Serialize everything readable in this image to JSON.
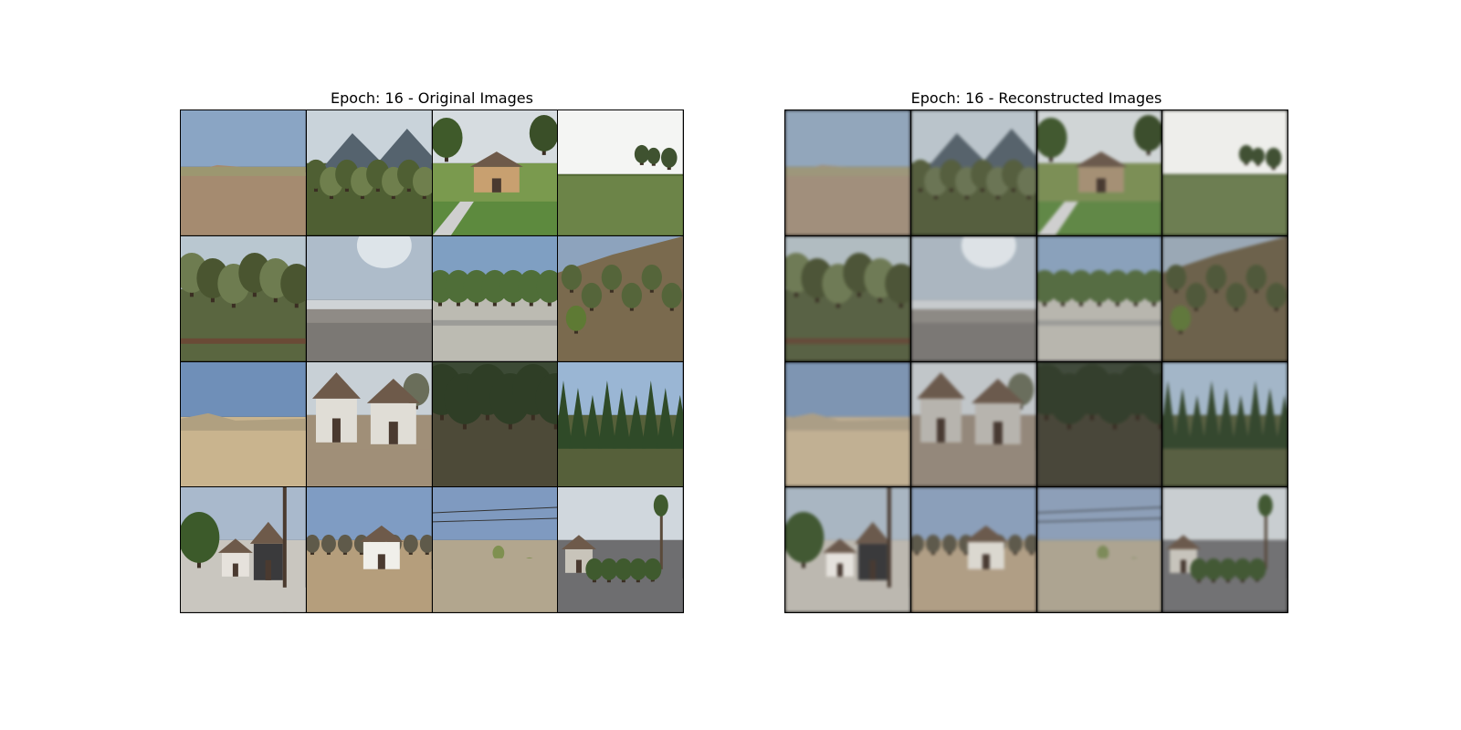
{
  "panels": [
    {
      "title": "Epoch: 16 - Original Images",
      "kind": "original",
      "tiles": [
        {
          "scene": "dry-hill",
          "sky": "#8aa5c4",
          "ground": "#a58b70",
          "mid": "#9a9a70"
        },
        {
          "scene": "trees-mountain",
          "sky": "#c9d3da",
          "ground": "#4f5f33",
          "mid": "#6f7f4d"
        },
        {
          "scene": "house",
          "sky": "#d6dce0",
          "ground": "#7a9a4e",
          "mid": "#c8a070"
        },
        {
          "scene": "field",
          "sky": "#f4f5f3",
          "ground": "#556b35",
          "mid": "#6c8448"
        },
        {
          "scene": "tall-trees",
          "sky": "#b9c7d0",
          "ground": "#5a6640",
          "mid": "#4a5530"
        },
        {
          "scene": "road-bright",
          "sky": "#aebcca",
          "ground": "#8f8b86",
          "mid": "#cfd3d6"
        },
        {
          "scene": "trees-road",
          "sky": "#7f9fc2",
          "ground": "#bcbbb2",
          "mid": "#4f6e38"
        },
        {
          "scene": "brush-hill",
          "sky": "#8da3bd",
          "ground": "#7a6a4e",
          "mid": "#55653a"
        },
        {
          "scene": "desert",
          "sky": "#6f8fb8",
          "ground": "#c9b48e",
          "mid": "#b0a080"
        },
        {
          "scene": "two-houses",
          "sky": "#c8d0d6",
          "ground": "#a08f78",
          "mid": "#e0ddd6"
        },
        {
          "scene": "dark-trees",
          "sky": "#3c4a35",
          "ground": "#4d4a38",
          "mid": "#2f3e26"
        },
        {
          "scene": "pines",
          "sky": "#9ab6d4",
          "ground": "#56603a",
          "mid": "#2f4a28"
        },
        {
          "scene": "garage",
          "sky": "#a9b9cc",
          "ground": "#c9c6bf",
          "mid": "#3c5a2a"
        },
        {
          "scene": "white-house",
          "sky": "#7f9cc3",
          "ground": "#b59e7c",
          "mid": "#f0efea"
        },
        {
          "scene": "lot",
          "sky": "#7f9ac0",
          "ground": "#b2a68e",
          "mid": "#7f9050"
        },
        {
          "scene": "street-palm",
          "sky": "#d0d7dd",
          "ground": "#6e6e70",
          "mid": "#3f5a2e"
        }
      ]
    },
    {
      "title": "Epoch: 16 - Reconstructed Images",
      "kind": "reconstructed",
      "tiles": [
        {
          "scene": "dry-hill",
          "sky": "#8fa6bf",
          "ground": "#a48f78",
          "mid": "#9c9876"
        },
        {
          "scene": "trees-mountain",
          "sky": "#b8c4cc",
          "ground": "#55603a",
          "mid": "#6a7650"
        },
        {
          "scene": "house",
          "sky": "#cfd5d6",
          "ground": "#7a904e",
          "mid": "#a89070"
        },
        {
          "scene": "field",
          "sky": "#eeeeea",
          "ground": "#566b38",
          "mid": "#6b7f4b"
        },
        {
          "scene": "tall-trees",
          "sky": "#b0bcc2",
          "ground": "#586340",
          "mid": "#4c5633"
        },
        {
          "scene": "road-bright",
          "sky": "#a9b6c2",
          "ground": "#8e8a84",
          "mid": "#c6cace"
        },
        {
          "scene": "trees-road",
          "sky": "#86a2c0",
          "ground": "#b8b6ad",
          "mid": "#536e3d"
        },
        {
          "scene": "brush-hill",
          "sky": "#98a8b8",
          "ground": "#6f6248",
          "mid": "#4f5a36"
        },
        {
          "scene": "desert",
          "sky": "#7a95b8",
          "ground": "#c4b08e",
          "mid": "#ad9e82"
        },
        {
          "scene": "two-houses",
          "sky": "#c0c6ca",
          "ground": "#968878",
          "mid": "#b8b4ad"
        },
        {
          "scene": "dark-trees",
          "sky": "#404c3a",
          "ground": "#4a4738",
          "mid": "#33402a"
        },
        {
          "scene": "pines",
          "sky": "#a0b7cc",
          "ground": "#58613e",
          "mid": "#33492c"
        },
        {
          "scene": "garage",
          "sky": "#a7b6c4",
          "ground": "#bdb8ae",
          "mid": "#3f5a2e"
        },
        {
          "scene": "white-house",
          "sky": "#889fbf",
          "ground": "#b39e80",
          "mid": "#dcd8cf"
        },
        {
          "scene": "lot",
          "sky": "#8a9fbd",
          "ground": "#aea48e",
          "mid": "#7c8c52"
        },
        {
          "scene": "street-palm",
          "sky": "#c8ced2",
          "ground": "#727274",
          "mid": "#405a30"
        }
      ]
    }
  ]
}
